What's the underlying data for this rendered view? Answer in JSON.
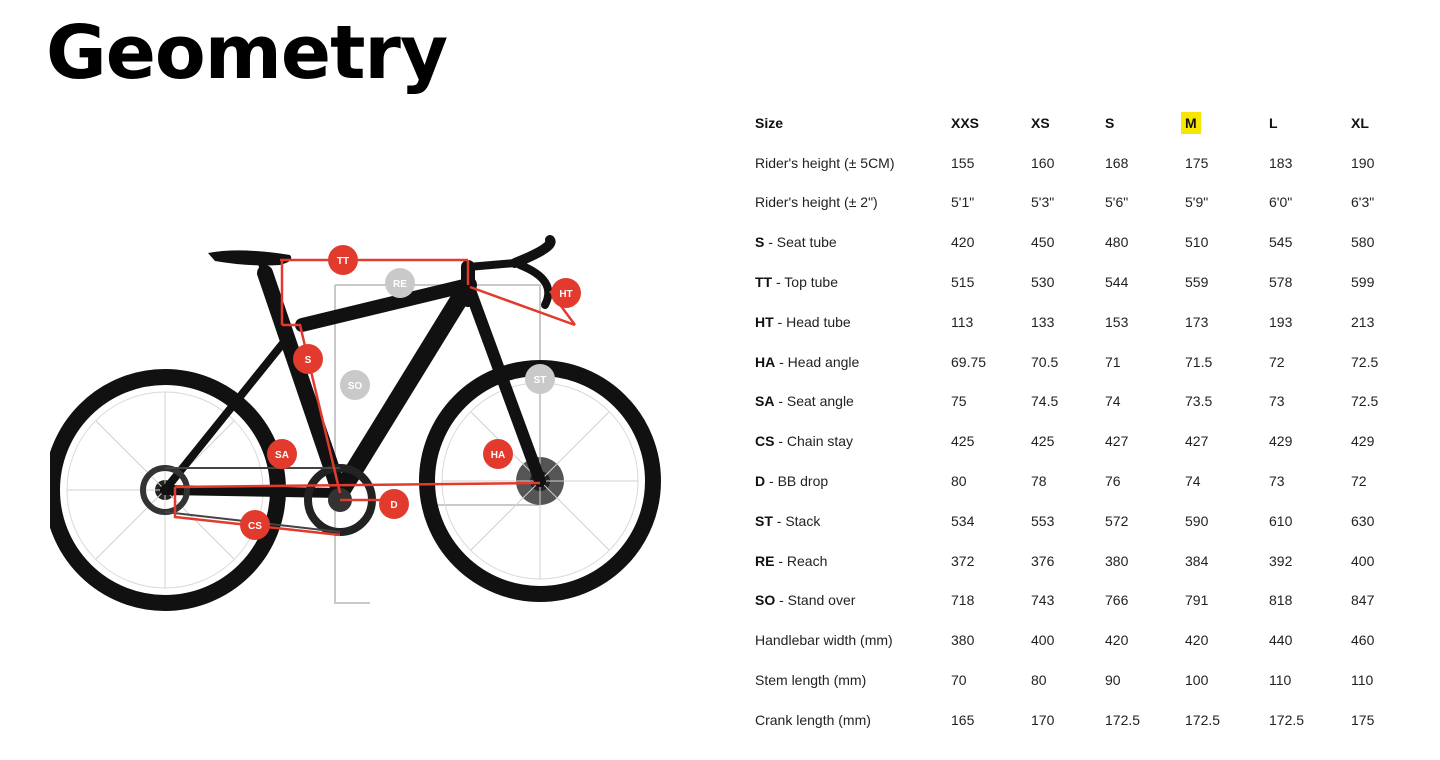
{
  "page": {
    "title": "Geometry"
  },
  "figure": {
    "callouts": [
      "TT",
      "RE",
      "HT",
      "S",
      "SO",
      "ST",
      "SA",
      "HA",
      "D",
      "CS"
    ],
    "colors": {
      "frame": "#111111",
      "measure_red": "#e23b2e",
      "measure_grey": "#c9c9c9"
    }
  },
  "table": {
    "header": {
      "label": "Size",
      "sizes": [
        "XXS",
        "XS",
        "S",
        "M",
        "L",
        "XL"
      ],
      "highlighted": "M",
      "highlight_color": "#f7e600"
    },
    "rows": [
      {
        "abbr": "",
        "label": "Rider's height (± 5CM)",
        "values": [
          "155",
          "160",
          "168",
          "175",
          "183",
          "190"
        ]
      },
      {
        "abbr": "",
        "label": "Rider's height (± 2\")",
        "values": [
          "5'1\"",
          "5'3\"",
          "5'6\"",
          "5'9\"",
          "6'0\"",
          "6'3\""
        ]
      },
      {
        "abbr": "S",
        "label": " - Seat tube",
        "values": [
          "420",
          "450",
          "480",
          "510",
          "545",
          "580"
        ]
      },
      {
        "abbr": "TT",
        "label": " - Top tube",
        "values": [
          "515",
          "530",
          "544",
          "559",
          "578",
          "599"
        ]
      },
      {
        "abbr": "HT",
        "label": " - Head tube",
        "values": [
          "113",
          "133",
          "153",
          "173",
          "193",
          "213"
        ]
      },
      {
        "abbr": "HA",
        "label": " - Head angle",
        "values": [
          "69.75",
          "70.5",
          "71",
          "71.5",
          "72",
          "72.5"
        ]
      },
      {
        "abbr": "SA",
        "label": " - Seat angle",
        "values": [
          "75",
          "74.5",
          "74",
          "73.5",
          "73",
          "72.5"
        ]
      },
      {
        "abbr": "CS",
        "label": " - Chain stay",
        "values": [
          "425",
          "425",
          "427",
          "427",
          "429",
          "429"
        ]
      },
      {
        "abbr": "D",
        "label": " - BB drop",
        "values": [
          "80",
          "78",
          "76",
          "74",
          "73",
          "72"
        ]
      },
      {
        "abbr": "ST",
        "label": " - Stack",
        "values": [
          "534",
          "553",
          "572",
          "590",
          "610",
          "630"
        ]
      },
      {
        "abbr": "RE",
        "label": " - Reach",
        "values": [
          "372",
          "376",
          "380",
          "384",
          "392",
          "400"
        ]
      },
      {
        "abbr": "SO",
        "label": " - Stand over",
        "values": [
          "718",
          "743",
          "766",
          "791",
          "818",
          "847"
        ]
      },
      {
        "abbr": "",
        "label": "Handlebar width (mm)",
        "values": [
          "380",
          "400",
          "420",
          "420",
          "440",
          "460"
        ]
      },
      {
        "abbr": "",
        "label": "Stem length (mm)",
        "values": [
          "70",
          "80",
          "90",
          "100",
          "110",
          "110"
        ]
      },
      {
        "abbr": "",
        "label": "Crank length (mm)",
        "values": [
          "165",
          "170",
          "172.5",
          "172.5",
          "172.5",
          "175"
        ]
      }
    ]
  }
}
